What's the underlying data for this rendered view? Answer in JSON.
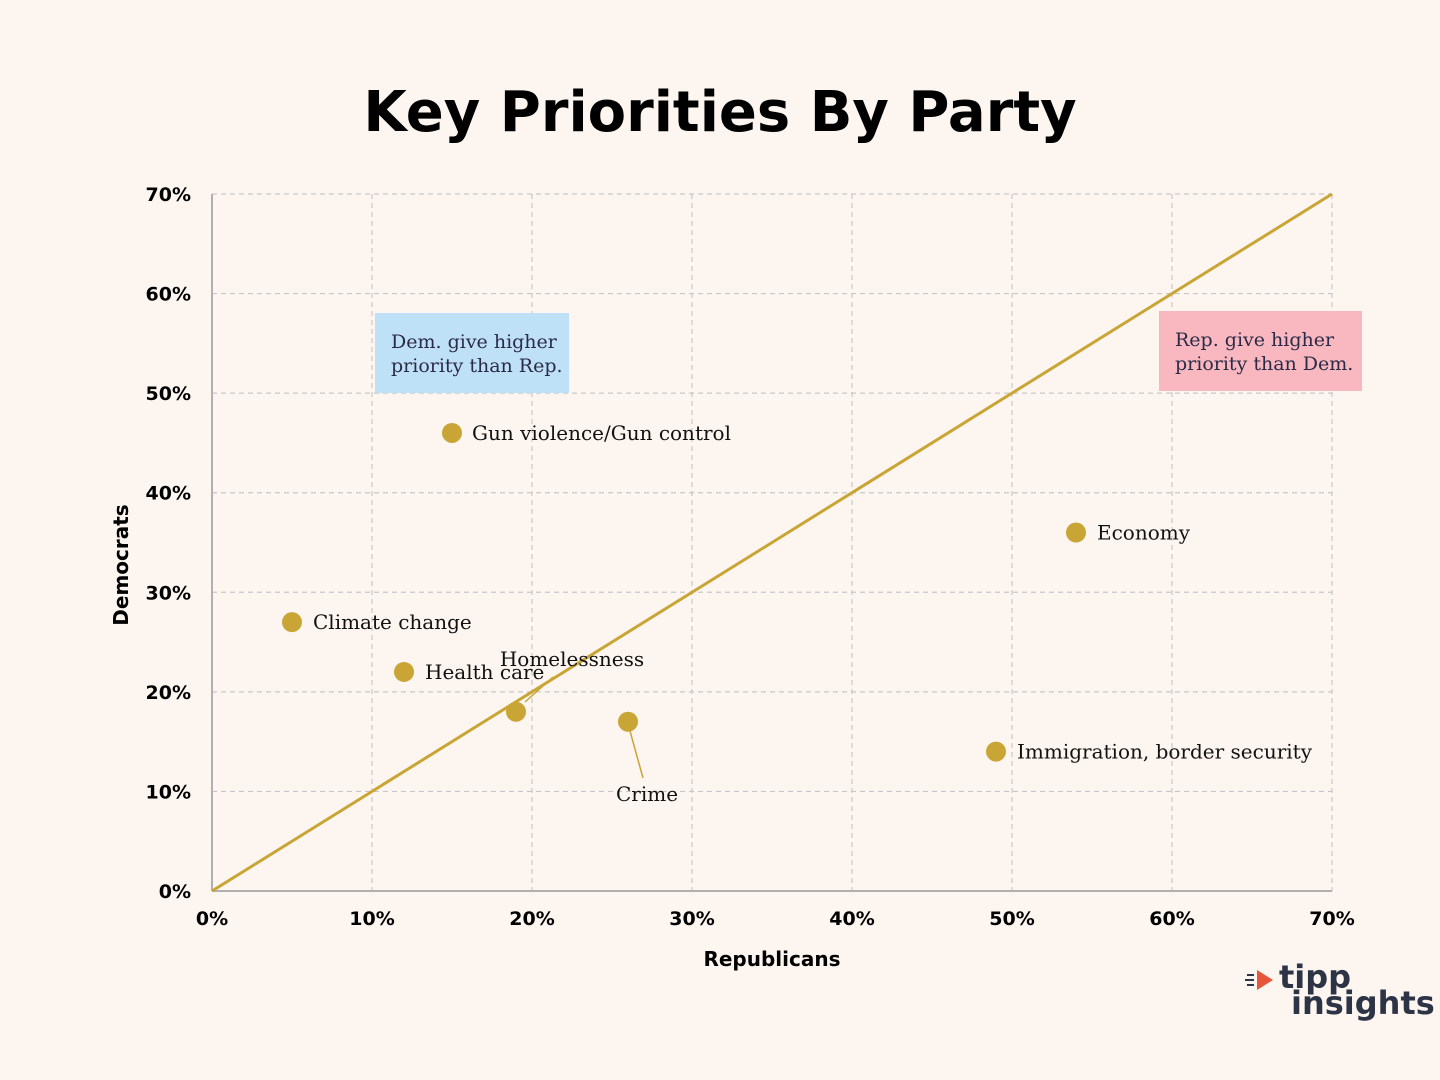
{
  "title": "Key Priorities By Party",
  "chart_data": {
    "type": "scatter",
    "title": "Key Priorities By Party",
    "xlabel": "Republicans",
    "ylabel": "Democrats",
    "xlim": [
      0,
      70
    ],
    "ylim": [
      0,
      70
    ],
    "xticks": [
      "0%",
      "10%",
      "20%",
      "30%",
      "40%",
      "50%",
      "60%",
      "70%"
    ],
    "yticks": [
      "0%",
      "10%",
      "20%",
      "30%",
      "40%",
      "50%",
      "60%",
      "70%"
    ],
    "grid": true,
    "reference_line": {
      "from": [
        0,
        0
      ],
      "to": [
        70,
        70
      ]
    },
    "points": [
      {
        "label": "Gun violence/Gun control",
        "x": 15,
        "y": 46
      },
      {
        "label": "Economy",
        "x": 54,
        "y": 36
      },
      {
        "label": "Climate change",
        "x": 5,
        "y": 27
      },
      {
        "label": "Health care",
        "x": 12,
        "y": 22
      },
      {
        "label": "Homelessness",
        "x": 19,
        "y": 18
      },
      {
        "label": "Crime",
        "x": 26,
        "y": 17
      },
      {
        "label": "Immigration, border security",
        "x": 49,
        "y": 14
      }
    ],
    "annotations": [
      {
        "text_lines": [
          "Dem. give higher",
          "priority than Rep."
        ],
        "fill": "#bfe1f7"
      },
      {
        "text_lines": [
          "Rep. give higher",
          "priority than Dem."
        ],
        "fill": "#f9b8c0"
      }
    ],
    "colors": {
      "point": "#c9a536",
      "line": "#c9a536",
      "grid": "#c8c8c8",
      "axis": "#b0b0b0",
      "background": "#fdf6f0"
    }
  },
  "logo": {
    "line1": "tipp",
    "line2": "insights"
  }
}
